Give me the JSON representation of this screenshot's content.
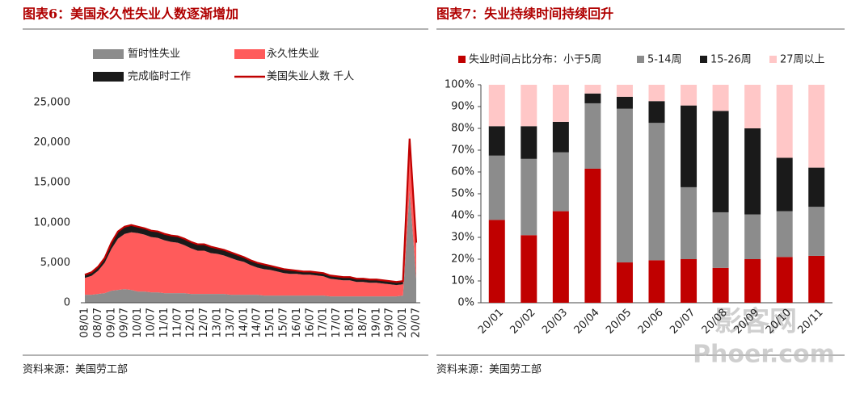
{
  "chart_data": [
    {
      "type": "area",
      "title": "图表6：美国永久性失业人数逐渐增加",
      "source": "资料来源：美国劳工部",
      "categories": [
        "08/01",
        null,
        "08/07",
        null,
        "09/01",
        null,
        "09/07",
        null,
        "10/01",
        null,
        "10/07",
        null,
        "11/01",
        null,
        "11/07",
        null,
        "12/01",
        null,
        "12/07",
        null,
        "13/01",
        null,
        "13/07",
        null,
        "14/01",
        null,
        "14/07",
        null,
        "15/01",
        null,
        "15/07",
        null,
        "16/01",
        null,
        "16/07",
        null,
        "17/01",
        null,
        "17/07",
        null,
        "18/01",
        null,
        "18/07",
        null,
        "19/01",
        null,
        "19/07",
        null,
        "20/01",
        null,
        "20/07"
      ],
      "series": [
        {
          "name": "暂时性失业",
          "color": "#8c8c8c",
          "values": [
            1000,
            1000,
            1100,
            1200,
            1500,
            1600,
            1700,
            1600,
            1400,
            1400,
            1300,
            1300,
            1200,
            1200,
            1200,
            1200,
            1100,
            1100,
            1100,
            1100,
            1100,
            1100,
            1000,
            1000,
            1000,
            1000,
            1000,
            900,
            900,
            900,
            900,
            900,
            900,
            900,
            900,
            900,
            900,
            800,
            800,
            800,
            800,
            800,
            800,
            800,
            800,
            800,
            800,
            800,
            900,
            14000,
            3000
          ]
        },
        {
          "name": "永久性失业",
          "color": "#ff5b5b",
          "values": [
            2100,
            2350,
            2900,
            3800,
            5200,
            6400,
            6900,
            7200,
            7300,
            7100,
            6900,
            6800,
            6600,
            6400,
            6300,
            6000,
            5700,
            5400,
            5400,
            5100,
            5000,
            4800,
            4600,
            4300,
            4100,
            3700,
            3400,
            3300,
            3200,
            3000,
            2800,
            2700,
            2700,
            2600,
            2600,
            2500,
            2400,
            2200,
            2100,
            2000,
            2000,
            1800,
            1800,
            1700,
            1700,
            1600,
            1500,
            1400,
            1400,
            5500,
            3800
          ]
        },
        {
          "name": "完成临时工作",
          "color": "#1a1a1a",
          "values": [
            400,
            450,
            500,
            600,
            800,
            900,
            900,
            900,
            800,
            800,
            800,
            800,
            800,
            800,
            800,
            800,
            800,
            800,
            800,
            800,
            700,
            700,
            700,
            700,
            600,
            600,
            600,
            600,
            500,
            500,
            500,
            500,
            400,
            400,
            400,
            400,
            400,
            400,
            400,
            400,
            400,
            400,
            400,
            400,
            400,
            400,
            400,
            400,
            400,
            1000,
            700
          ]
        },
        {
          "name": "美国失业人数 千人",
          "type": "line",
          "color": "#c00000",
          "values": [
            3500,
            3800,
            4500,
            5600,
            7500,
            8900,
            9500,
            9700,
            9500,
            9300,
            9000,
            8900,
            8600,
            8400,
            8300,
            8000,
            7600,
            7300,
            7300,
            7000,
            6800,
            6600,
            6300,
            6000,
            5700,
            5300,
            5000,
            4800,
            4600,
            4400,
            4200,
            4100,
            4000,
            3900,
            3900,
            3800,
            3700,
            3400,
            3300,
            3200,
            3200,
            3000,
            3000,
            2900,
            2900,
            2800,
            2700,
            2600,
            2700,
            20500,
            7500
          ]
        }
      ],
      "ylim": [
        0,
        25000
      ],
      "yticks": [
        0,
        {
          "value": 5000,
          "label": "5,000"
        },
        {
          "value": 10000,
          "label": "10,000"
        },
        {
          "value": 15000,
          "label": "15,000"
        },
        {
          "value": 20000,
          "label": "20,000"
        },
        {
          "value": 25000,
          "label": "25,000"
        }
      ]
    },
    {
      "type": "stacked_bar",
      "title": "图表7：失业持续时间持续回升",
      "source": "资料来源：美国劳工部",
      "categories": [
        "20/01",
        "20/02",
        "20/03",
        "20/04",
        "20/05",
        "20/06",
        "20/07",
        "20/08",
        "20/09",
        "20/10",
        "20/11"
      ],
      "series": [
        {
          "name": "失业时间占比分布：小于5周",
          "color": "#c00000",
          "values": [
            38,
            31,
            42,
            61.5,
            18.5,
            19.5,
            20,
            16,
            20,
            21,
            21.5
          ]
        },
        {
          "name": "5-14周",
          "color": "#8c8c8c",
          "values": [
            29.5,
            35,
            27,
            30,
            70.5,
            63,
            33,
            25.5,
            20.5,
            21,
            22.5
          ]
        },
        {
          "name": "15-26周",
          "color": "#1a1a1a",
          "values": [
            13.5,
            15,
            14,
            4.5,
            5.5,
            10,
            37.5,
            46.5,
            39.5,
            24.5,
            18
          ]
        },
        {
          "name": "27周以上",
          "color": "#ffc7c7",
          "values": [
            19,
            19,
            17,
            4,
            5.5,
            7.5,
            9.5,
            12,
            20,
            33.5,
            38
          ]
        }
      ],
      "ylim": [
        0,
        100
      ],
      "yticks": [
        {
          "value": 0,
          "label": "0%"
        },
        {
          "value": 10,
          "label": "10%"
        },
        {
          "value": 20,
          "label": "20%"
        },
        {
          "value": 30,
          "label": "30%"
        },
        {
          "value": 40,
          "label": "40%"
        },
        {
          "value": 50,
          "label": "50%"
        },
        {
          "value": 60,
          "label": "60%"
        },
        {
          "value": 70,
          "label": "70%"
        },
        {
          "value": 80,
          "label": "80%"
        },
        {
          "value": 90,
          "label": "90%"
        },
        {
          "value": 100,
          "label": "100%"
        }
      ]
    }
  ],
  "watermark": {
    "line1": "影客网",
    "line2": "Phoer.com"
  }
}
